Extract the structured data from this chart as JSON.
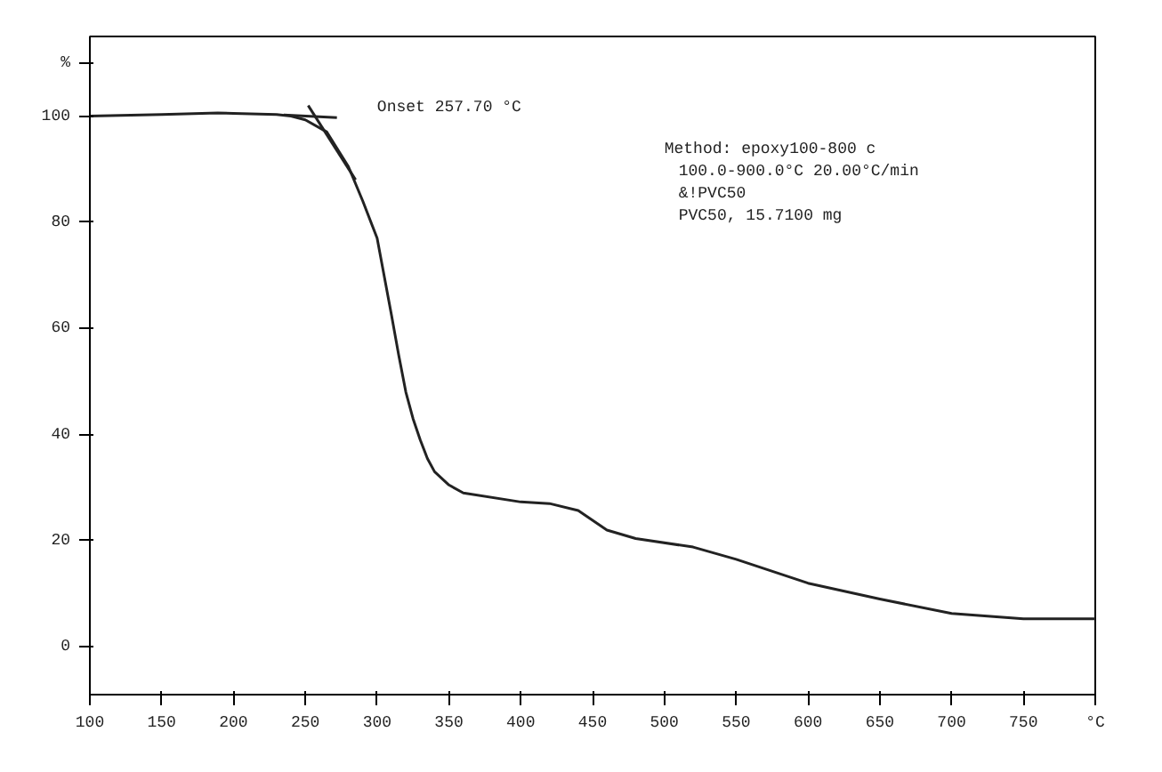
{
  "chart_data": {
    "type": "line",
    "x": [
      100,
      150,
      189,
      200,
      230,
      240,
      250,
      265,
      280,
      290,
      300,
      310,
      315,
      320,
      325,
      330,
      335,
      340,
      350,
      360,
      400,
      420,
      440,
      460,
      480,
      520,
      550,
      600,
      650,
      700,
      750,
      800
    ],
    "series": [
      {
        "color": "#222222",
        "values": [
          100,
          100.3,
          100.6,
          100.5,
          100.3,
          100,
          99.3,
          97,
          90.5,
          84,
          77,
          62.5,
          55,
          48,
          43,
          39,
          35.5,
          33,
          30.5,
          29,
          27.3,
          27,
          25.7,
          22,
          20.4,
          18.8,
          16.5,
          12,
          9,
          6.3,
          5.3,
          5.3
        ]
      },
      {
        "color": "#222222",
        "x": [
          235,
          272
        ],
        "values": [
          100.2,
          99.7
        ]
      },
      {
        "color": "#222222",
        "x": [
          252,
          285
        ],
        "values": [
          102,
          88
        ]
      }
    ],
    "xlim": [
      100,
      800
    ],
    "ylim": [
      -9,
      115
    ],
    "xticks": [
      100,
      150,
      200,
      250,
      300,
      350,
      400,
      450,
      500,
      550,
      600,
      650,
      700,
      750,
      {
        "value": 800,
        "label": "°C"
      }
    ],
    "yticks": [
      0,
      20,
      40,
      60,
      80,
      100,
      {
        "value": 110,
        "label": "%"
      }
    ],
    "grid": false,
    "marker": "none",
    "line_style": "solid",
    "annotations": [
      "Onset 257.70 °C",
      "Method: epoxy100-800 c",
      "100.0-900.0°C 20.00°C/min",
      "&!PVC50",
      "PVC50, 15.7100 mg"
    ]
  }
}
